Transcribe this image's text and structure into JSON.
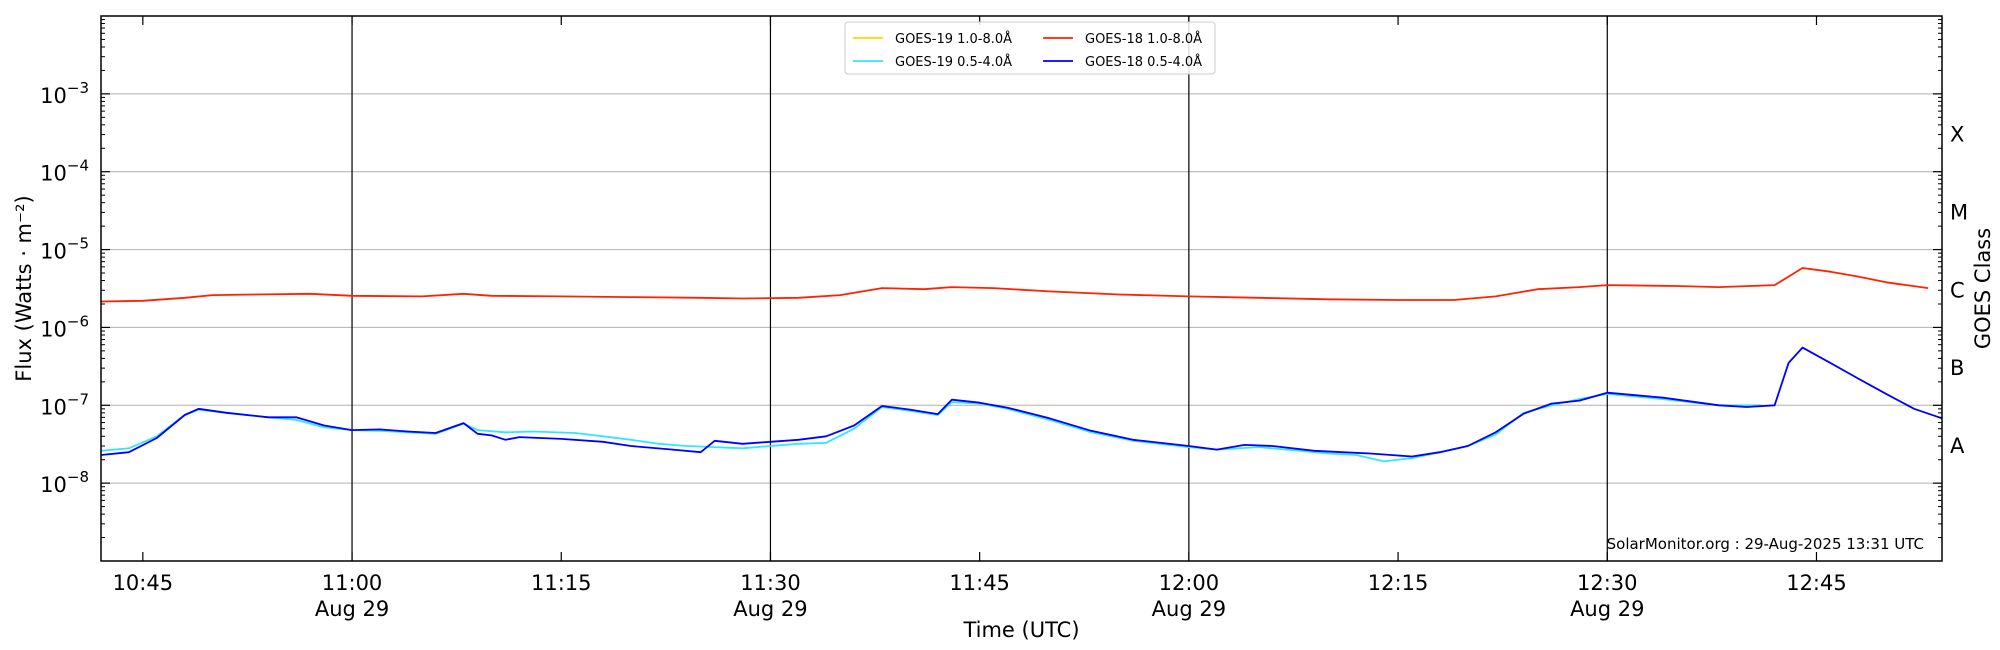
{
  "chart_data": {
    "type": "line",
    "title": "",
    "xlabel": "Time (UTC)",
    "ylabel": "Flux (Watts · m⁻²)",
    "ylabel_right": "GOES Class",
    "y_scale": "log",
    "ylim": [
      1e-09,
      0.01
    ],
    "xlim": [
      "10:42",
      "12:54"
    ],
    "grid": "horizontal",
    "legend_position": "top-center",
    "annotation": "SolarMonitor.org : 29-Aug-2025 13:31 UTC",
    "x_ticks": [
      {
        "time": "10:45",
        "label": "10:45",
        "date": ""
      },
      {
        "time": "11:00",
        "label": "11:00",
        "date": "Aug 29"
      },
      {
        "time": "11:15",
        "label": "11:15",
        "date": ""
      },
      {
        "time": "11:30",
        "label": "11:30",
        "date": "Aug 29"
      },
      {
        "time": "11:45",
        "label": "11:45",
        "date": ""
      },
      {
        "time": "12:00",
        "label": "12:00",
        "date": "Aug 29"
      },
      {
        "time": "12:15",
        "label": "12:15",
        "date": ""
      },
      {
        "time": "12:30",
        "label": "12:30",
        "date": "Aug 29"
      },
      {
        "time": "12:45",
        "label": "12:45",
        "date": ""
      }
    ],
    "y_ticks": [
      {
        "value": 1e-08,
        "base": "10",
        "exp": "−8"
      },
      {
        "value": 1e-07,
        "base": "10",
        "exp": "−7"
      },
      {
        "value": 1e-06,
        "base": "10",
        "exp": "−6"
      },
      {
        "value": 1e-05,
        "base": "10",
        "exp": "−5"
      },
      {
        "value": 0.0001,
        "base": "10",
        "exp": "−4"
      },
      {
        "value": 0.001,
        "base": "10",
        "exp": "−3"
      }
    ],
    "day_lines": [
      "11:00",
      "11:30",
      "12:00",
      "12:30"
    ],
    "class_labels": [
      {
        "label": "X",
        "value": 0.0003
      },
      {
        "label": "M",
        "value": 3e-05
      },
      {
        "label": "C",
        "value": 3e-06
      },
      {
        "label": "B",
        "value": 3e-07
      },
      {
        "label": "A",
        "value": 3e-08
      }
    ],
    "legend": [
      {
        "name": "GOES-19 1.0-8.0Å",
        "color": "#ffd700"
      },
      {
        "name": "GOES-19 0.5-4.0Å",
        "color": "#33e6ff"
      },
      {
        "name": "GOES-18 1.0-8.0Å",
        "color": "#ff2200"
      },
      {
        "name": "GOES-18 0.5-4.0Å",
        "color": "#0000ff"
      }
    ],
    "series": [
      {
        "name": "GOES-18 1.0-8.0Å",
        "color": "#ff2200",
        "points": [
          [
            "10:42",
            2.15e-06
          ],
          [
            "10:45",
            2.2e-06
          ],
          [
            "10:48",
            2.4e-06
          ],
          [
            "10:50",
            2.6e-06
          ],
          [
            "10:53",
            2.65e-06
          ],
          [
            "10:57",
            2.7e-06
          ],
          [
            "11:00",
            2.55e-06
          ],
          [
            "11:05",
            2.5e-06
          ],
          [
            "11:08",
            2.7e-06
          ],
          [
            "11:10",
            2.55e-06
          ],
          [
            "11:15",
            2.5e-06
          ],
          [
            "11:20",
            2.45e-06
          ],
          [
            "11:25",
            2.4e-06
          ],
          [
            "11:28",
            2.35e-06
          ],
          [
            "11:32",
            2.4e-06
          ],
          [
            "11:35",
            2.6e-06
          ],
          [
            "11:38",
            3.2e-06
          ],
          [
            "11:41",
            3.1e-06
          ],
          [
            "11:43",
            3.3e-06
          ],
          [
            "11:46",
            3.2e-06
          ],
          [
            "11:50",
            2.9e-06
          ],
          [
            "11:55",
            2.65e-06
          ],
          [
            "12:00",
            2.5e-06
          ],
          [
            "12:05",
            2.4e-06
          ],
          [
            "12:10",
            2.3e-06
          ],
          [
            "12:15",
            2.25e-06
          ],
          [
            "12:19",
            2.25e-06
          ],
          [
            "12:22",
            2.5e-06
          ],
          [
            "12:25",
            3.1e-06
          ],
          [
            "12:28",
            3.3e-06
          ],
          [
            "12:30",
            3.5e-06
          ],
          [
            "12:35",
            3.4e-06
          ],
          [
            "12:38",
            3.3e-06
          ],
          [
            "12:42",
            3.5e-06
          ],
          [
            "12:43",
            4.5e-06
          ],
          [
            "12:44",
            5.8e-06
          ],
          [
            "12:46",
            5.2e-06
          ],
          [
            "12:48",
            4.5e-06
          ],
          [
            "12:50",
            3.8e-06
          ],
          [
            "12:53",
            3.2e-06
          ]
        ]
      },
      {
        "name": "GOES-19 0.5-4.0Å",
        "color": "#33e6ff",
        "points": [
          [
            "10:42",
            2.6e-08
          ],
          [
            "10:44",
            2.8e-08
          ],
          [
            "10:46",
            4e-08
          ],
          [
            "10:48",
            7.5e-08
          ],
          [
            "10:49",
            8.8e-08
          ],
          [
            "10:51",
            8e-08
          ],
          [
            "10:54",
            7e-08
          ],
          [
            "10:56",
            6.5e-08
          ],
          [
            "10:58",
            5.2e-08
          ],
          [
            "11:00",
            4.8e-08
          ],
          [
            "11:02",
            4.7e-08
          ],
          [
            "11:04",
            4.5e-08
          ],
          [
            "11:06",
            4.3e-08
          ],
          [
            "11:08",
            5.8e-08
          ],
          [
            "11:09",
            4.8e-08
          ],
          [
            "11:11",
            4.5e-08
          ],
          [
            "11:13",
            4.6e-08
          ],
          [
            "11:16",
            4.4e-08
          ],
          [
            "11:18",
            4e-08
          ],
          [
            "11:20",
            3.6e-08
          ],
          [
            "11:22",
            3.2e-08
          ],
          [
            "11:24",
            3e-08
          ],
          [
            "11:26",
            2.9e-08
          ],
          [
            "11:28",
            2.8e-08
          ],
          [
            "11:30",
            3e-08
          ],
          [
            "11:32",
            3.2e-08
          ],
          [
            "11:34",
            3.3e-08
          ],
          [
            "11:36",
            5e-08
          ],
          [
            "11:38",
            9.5e-08
          ],
          [
            "11:40",
            8.5e-08
          ],
          [
            "11:42",
            7.5e-08
          ],
          [
            "11:43",
            1.1e-07
          ],
          [
            "11:45",
            1.05e-07
          ],
          [
            "11:47",
            9e-08
          ],
          [
            "11:50",
            6.5e-08
          ],
          [
            "11:53",
            4.5e-08
          ],
          [
            "11:56",
            3.5e-08
          ],
          [
            "12:00",
            2.9e-08
          ],
          [
            "12:02",
            2.7e-08
          ],
          [
            "12:05",
            2.9e-08
          ],
          [
            "12:08",
            2.6e-08
          ],
          [
            "12:10",
            2.4e-08
          ],
          [
            "12:12",
            2.3e-08
          ],
          [
            "12:14",
            1.9e-08
          ],
          [
            "12:16",
            2.1e-08
          ],
          [
            "12:18",
            2.5e-08
          ],
          [
            "12:20",
            3e-08
          ],
          [
            "12:22",
            4.2e-08
          ],
          [
            "12:24",
            8e-08
          ],
          [
            "12:26",
            1e-07
          ],
          [
            "12:28",
            1.2e-07
          ],
          [
            "12:30",
            1.4e-07
          ],
          [
            "12:34",
            1.2e-07
          ],
          [
            "12:38",
            1e-07
          ],
          [
            "12:41",
            1e-07
          ]
        ]
      },
      {
        "name": "GOES-18 0.5-4.0Å",
        "color": "#0000ff",
        "points": [
          [
            "10:42",
            2.3e-08
          ],
          [
            "10:44",
            2.5e-08
          ],
          [
            "10:46",
            3.8e-08
          ],
          [
            "10:48",
            7.5e-08
          ],
          [
            "10:49",
            9e-08
          ],
          [
            "10:51",
            8e-08
          ],
          [
            "10:54",
            7e-08
          ],
          [
            "10:56",
            7e-08
          ],
          [
            "10:58",
            5.5e-08
          ],
          [
            "11:00",
            4.8e-08
          ],
          [
            "11:02",
            4.9e-08
          ],
          [
            "11:04",
            4.6e-08
          ],
          [
            "11:06",
            4.4e-08
          ],
          [
            "11:08",
            5.9e-08
          ],
          [
            "11:09",
            4.3e-08
          ],
          [
            "11:10",
            4.1e-08
          ],
          [
            "11:11",
            3.6e-08
          ],
          [
            "11:12",
            3.9e-08
          ],
          [
            "11:15",
            3.7e-08
          ],
          [
            "11:18",
            3.4e-08
          ],
          [
            "11:20",
            3e-08
          ],
          [
            "11:23",
            2.7e-08
          ],
          [
            "11:25",
            2.5e-08
          ],
          [
            "11:26",
            3.5e-08
          ],
          [
            "11:28",
            3.2e-08
          ],
          [
            "11:30",
            3.4e-08
          ],
          [
            "11:32",
            3.6e-08
          ],
          [
            "11:34",
            4e-08
          ],
          [
            "11:36",
            5.5e-08
          ],
          [
            "11:38",
            9.8e-08
          ],
          [
            "11:40",
            8.8e-08
          ],
          [
            "11:42",
            7.7e-08
          ],
          [
            "11:43",
            1.18e-07
          ],
          [
            "11:45",
            1.08e-07
          ],
          [
            "11:47",
            9.3e-08
          ],
          [
            "11:50",
            6.8e-08
          ],
          [
            "11:53",
            4.7e-08
          ],
          [
            "11:56",
            3.6e-08
          ],
          [
            "12:00",
            3e-08
          ],
          [
            "12:02",
            2.7e-08
          ],
          [
            "12:04",
            3.1e-08
          ],
          [
            "12:06",
            3e-08
          ],
          [
            "12:09",
            2.6e-08
          ],
          [
            "12:11",
            2.5e-08
          ],
          [
            "12:13",
            2.4e-08
          ],
          [
            "12:16",
            2.2e-08
          ],
          [
            "12:18",
            2.5e-08
          ],
          [
            "12:20",
            3e-08
          ],
          [
            "12:22",
            4.5e-08
          ],
          [
            "12:24",
            7.8e-08
          ],
          [
            "12:26",
            1.05e-07
          ],
          [
            "12:28",
            1.15e-07
          ],
          [
            "12:30",
            1.45e-07
          ],
          [
            "12:34",
            1.25e-07
          ],
          [
            "12:38",
            1e-07
          ],
          [
            "12:40",
            9.5e-08
          ],
          [
            "12:42",
            1e-07
          ],
          [
            "12:43",
            3.5e-07
          ],
          [
            "12:44",
            5.5e-07
          ],
          [
            "12:46",
            3.5e-07
          ],
          [
            "12:48",
            2.2e-07
          ],
          [
            "12:50",
            1.4e-07
          ],
          [
            "12:52",
            9e-08
          ],
          [
            "12:54",
            6.8e-08
          ]
        ]
      }
    ]
  }
}
